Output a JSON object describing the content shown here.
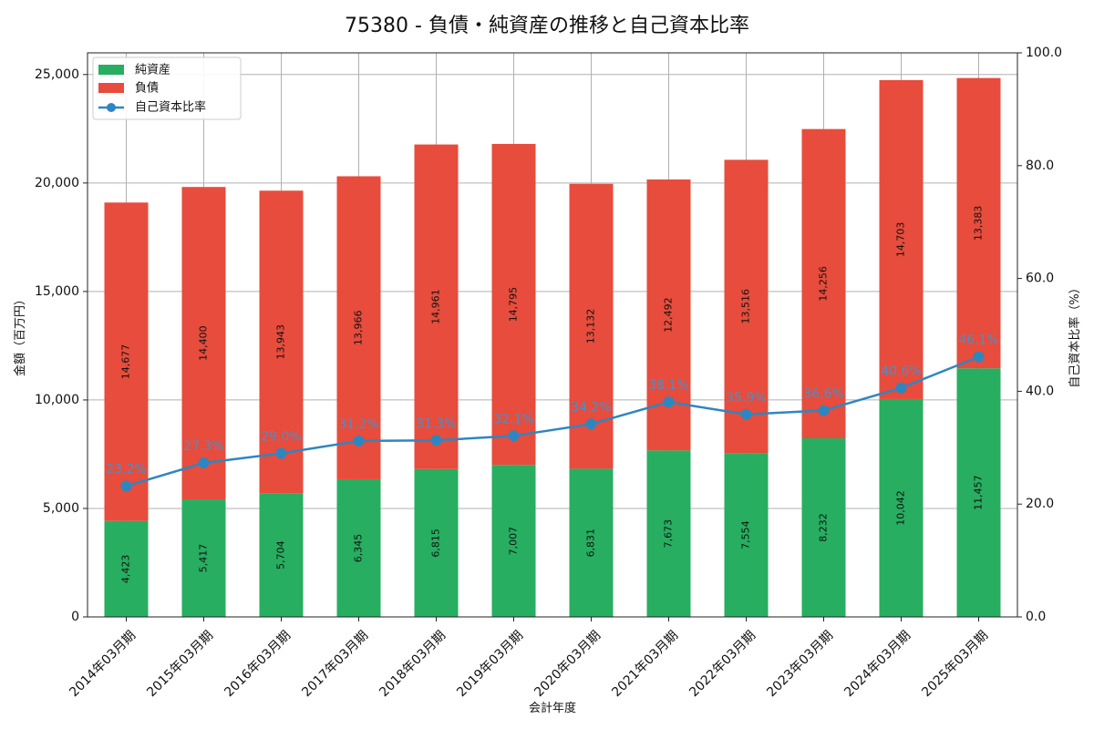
{
  "chart_data": {
    "type": "bar",
    "title": "75380 - 負債・純資産の推移と自己資本比率",
    "xlabel": "会計年度",
    "ylabel": "金額（百万円）",
    "y2label": "自己資本比率（%）",
    "ylim": [
      0,
      26000
    ],
    "y2lim": [
      0,
      100
    ],
    "yticks": [
      "0",
      "5,000",
      "10,000",
      "15,000",
      "20,000",
      "25,000"
    ],
    "y2ticks": [
      "0.0",
      "20.0",
      "40.0",
      "60.0",
      "80.0",
      "100.0"
    ],
    "grid": true,
    "legend_position": "top-left",
    "categories": [
      "2014年03月期",
      "2015年03月期",
      "2016年03月期",
      "2017年03月期",
      "2018年03月期",
      "2019年03月期",
      "2020年03月期",
      "2021年03月期",
      "2022年03月期",
      "2023年03月期",
      "2024年03月期",
      "2025年03月期"
    ],
    "series": [
      {
        "name": "純資産",
        "kind": "stacked-bar",
        "color": "#27ae60",
        "values": [
          4423,
          5417,
          5704,
          6345,
          6815,
          7007,
          6831,
          7673,
          7554,
          8232,
          10042,
          11457
        ],
        "labels": [
          "4,423",
          "5,417",
          "5,704",
          "6,345",
          "6,815",
          "7,007",
          "6,831",
          "7,673",
          "7,554",
          "8,232",
          "10,042",
          "11,457"
        ]
      },
      {
        "name": "負債",
        "kind": "stacked-bar",
        "color": "#e74c3c",
        "values": [
          14677,
          14400,
          13943,
          13966,
          14961,
          14795,
          13132,
          12492,
          13516,
          14256,
          14703,
          13383
        ],
        "labels": [
          "14,677",
          "14,400",
          "13,943",
          "13,966",
          "14,961",
          "14,795",
          "13,132",
          "12,492",
          "13,516",
          "14,256",
          "14,703",
          "13,383"
        ]
      },
      {
        "name": "自己資本比率",
        "kind": "line",
        "axis": "right",
        "color": "#2e86c1",
        "values": [
          23.2,
          27.3,
          29.0,
          31.2,
          31.3,
          32.1,
          34.2,
          38.1,
          35.9,
          36.6,
          40.6,
          46.1
        ],
        "labels": [
          "23.2%",
          "27.3%",
          "29.0%",
          "31.2%",
          "31.3%",
          "32.1%",
          "34.2%",
          "38.1%",
          "35.9%",
          "36.6%",
          "40.6%",
          "46.1%"
        ]
      }
    ]
  }
}
